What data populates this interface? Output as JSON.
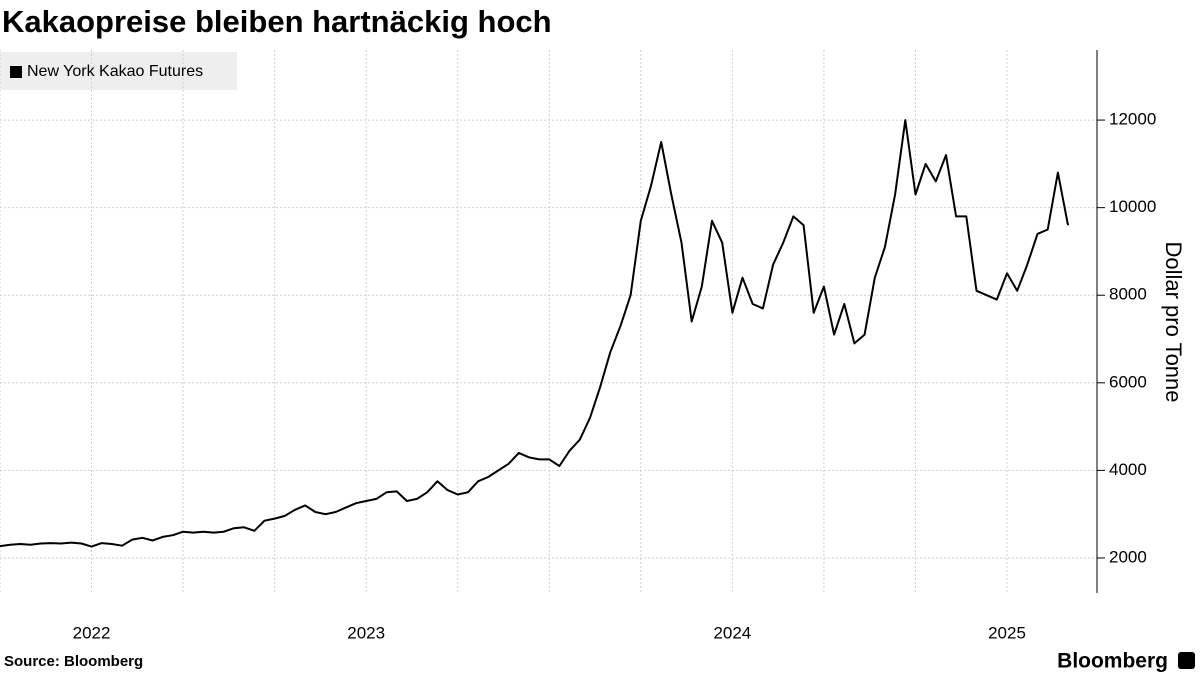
{
  "chart_data": {
    "type": "line",
    "title": "Kakaopreise bleiben hartnäckig hoch",
    "y_label": "Dollar pro Tonne",
    "source": "Source: Bloomberg",
    "logo_text": "Bloomberg",
    "categories": [
      null,
      null,
      null,
      null,
      null,
      null,
      null,
      null,
      null,
      "2022",
      null,
      null,
      null,
      null,
      null,
      null,
      null,
      null,
      null,
      null,
      null,
      null,
      null,
      null,
      null,
      null,
      null,
      null,
      null,
      null,
      null,
      null,
      null,
      null,
      null,
      null,
      "2023",
      null,
      null,
      null,
      null,
      null,
      null,
      null,
      null,
      null,
      null,
      null,
      null,
      null,
      null,
      null,
      null,
      null,
      null,
      null,
      null,
      null,
      null,
      null,
      null,
      null,
      null,
      null,
      null,
      null,
      null,
      null,
      null,
      null,
      null,
      null,
      "2024",
      null,
      null,
      null,
      null,
      null,
      null,
      null,
      null,
      null,
      null,
      null,
      null,
      null,
      null,
      null,
      null,
      null,
      null,
      null,
      null,
      null,
      null,
      null,
      null,
      null,
      null,
      "2025",
      null,
      null,
      null,
      null,
      null,
      null
    ],
    "series": [
      {
        "name": "New York Kakao Futures",
        "color": "#000000",
        "values": [
          2270,
          2300,
          2320,
          2300,
          2330,
          2340,
          2330,
          2350,
          2330,
          2260,
          2340,
          2320,
          2280,
          2420,
          2460,
          2400,
          2480,
          2520,
          2600,
          2580,
          2600,
          2580,
          2600,
          2680,
          2700,
          2620,
          2850,
          2900,
          2960,
          3100,
          3200,
          3050,
          3000,
          3050,
          3150,
          3250,
          3300,
          3350,
          3500,
          3520,
          3300,
          3350,
          3500,
          3750,
          3550,
          3450,
          3500,
          3750,
          3850,
          4000,
          4150,
          4400,
          4300,
          4250,
          4250,
          4100,
          4450,
          4700,
          5200,
          5900,
          6700,
          7300,
          8000,
          9700,
          10500,
          11500,
          10300,
          9200,
          7400,
          8200,
          9700,
          9200,
          7600,
          8400,
          7800,
          7700,
          8700,
          9200,
          9800,
          9600,
          7600,
          8200,
          7100,
          7800,
          6900,
          7100,
          8400,
          9100,
          10300,
          12000,
          10300,
          11000,
          10600,
          11200,
          9800,
          9800,
          8100,
          8000,
          7900,
          8500,
          8100,
          8700,
          9400,
          9500,
          10800,
          9600
        ]
      }
    ],
    "ylim": [
      1200,
      13600
    ],
    "yticks": [
      2000,
      4000,
      6000,
      8000,
      10000,
      12000
    ],
    "grid": true,
    "legend": "top-left"
  }
}
